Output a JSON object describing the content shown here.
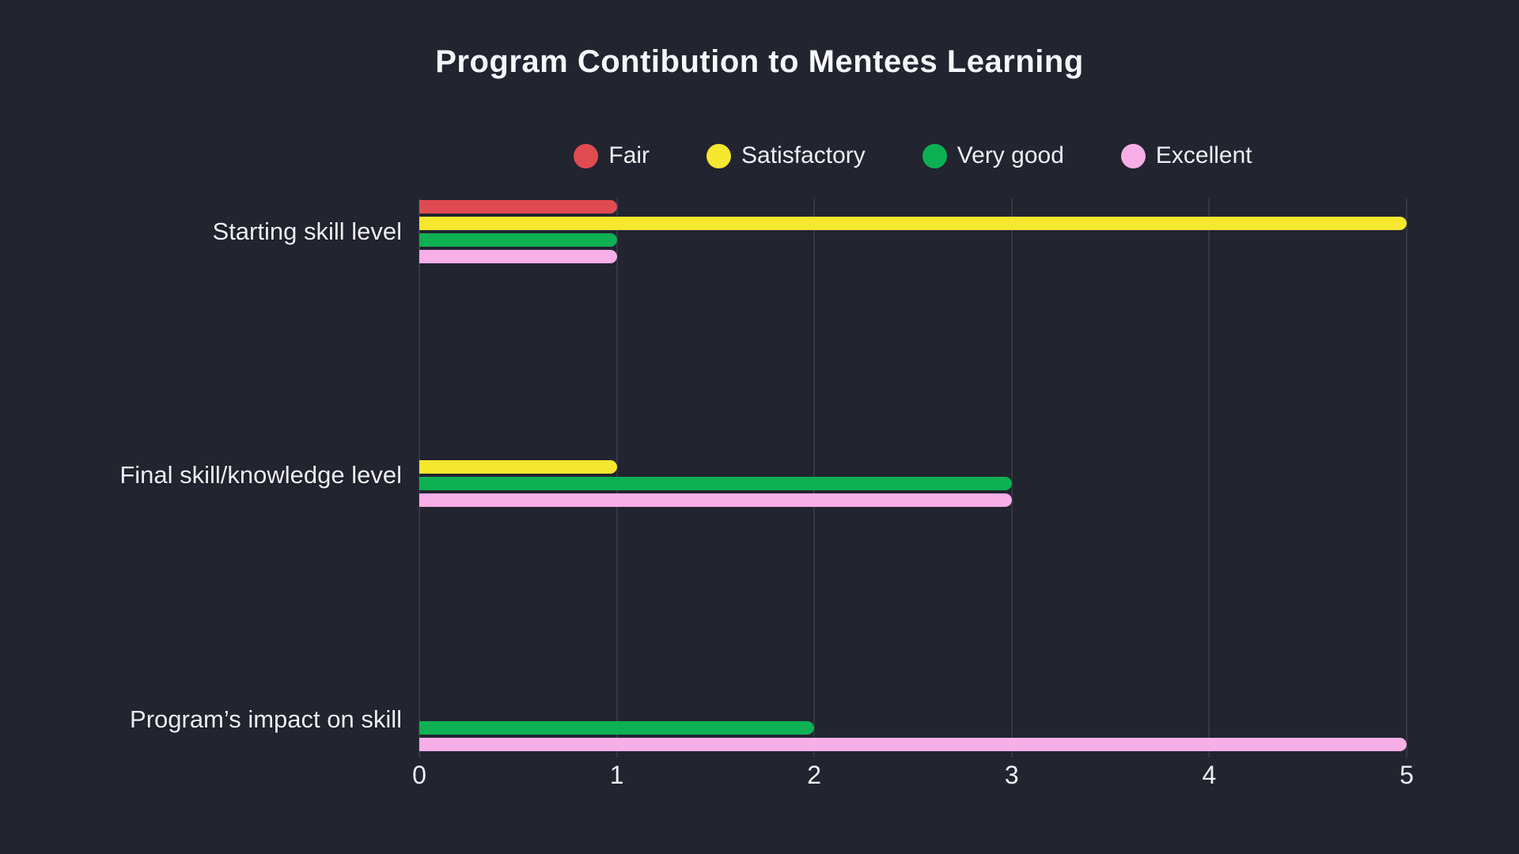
{
  "title": "Program Contibution to Mentees Learning",
  "colors": {
    "background": "#22242f",
    "gridline": "#343744",
    "text": "#eef0f4",
    "title_text": "#f6f7f9",
    "fair": "#e04b51",
    "satisfactory": "#f6e72f",
    "very_good": "#0db053",
    "excellent": "#f8afe8"
  },
  "legend": {
    "items": [
      {
        "label": "Fair",
        "color": "#e04b51"
      },
      {
        "label": "Satisfactory",
        "color": "#f6e72f"
      },
      {
        "label": "Very good",
        "color": "#0db053"
      },
      {
        "label": "Excellent",
        "color": "#f8afe8"
      }
    ]
  },
  "chart_data": {
    "type": "bar",
    "orientation": "horizontal",
    "title": "Program Contibution to Mentees Learning",
    "categories": [
      "Starting skill level",
      "Final skill/knowledge level",
      "Program’s impact on skill"
    ],
    "series": [
      {
        "name": "Fair",
        "color": "#e04b51",
        "values": [
          1,
          0,
          0
        ]
      },
      {
        "name": "Satisfactory",
        "color": "#f6e72f",
        "values": [
          5,
          1,
          0
        ]
      },
      {
        "name": "Very good",
        "color": "#0db053",
        "values": [
          1,
          3,
          2
        ]
      },
      {
        "name": "Excellent",
        "color": "#f8afe8",
        "values": [
          1,
          3,
          5
        ]
      }
    ],
    "x_ticks": [
      "0",
      "1",
      "2",
      "3",
      "4",
      "5"
    ],
    "xlim": [
      0,
      5
    ],
    "xlabel": "",
    "ylabel": "",
    "grid": true,
    "legend_position": "top",
    "zero_bars_hidden": true
  }
}
